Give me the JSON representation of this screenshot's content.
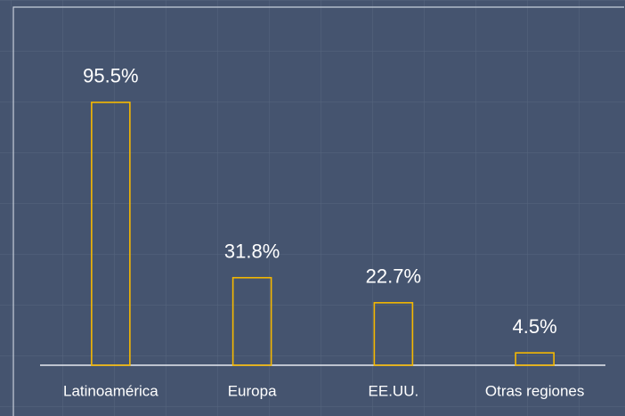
{
  "chart_data": {
    "type": "bar",
    "categories": [
      "Latinoamérica",
      "Europa",
      "EE.UU.",
      "Otras regiones"
    ],
    "values": [
      95.5,
      31.8,
      22.7,
      4.5
    ],
    "value_labels": [
      "95.5%",
      "31.8%",
      "22.7%",
      "4.5%"
    ],
    "color": "#f5b800",
    "ylim": [
      0,
      100
    ]
  }
}
